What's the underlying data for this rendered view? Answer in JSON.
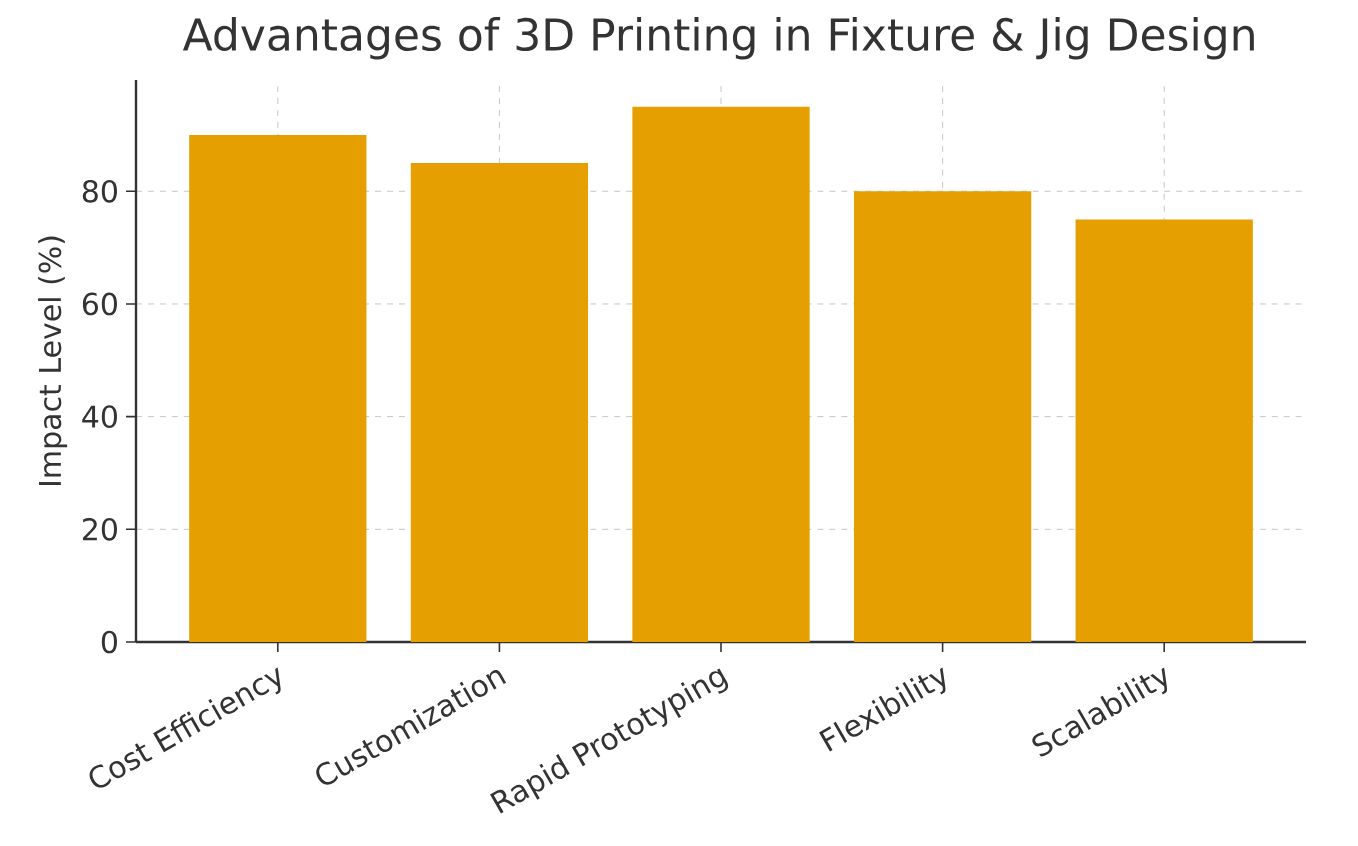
{
  "chart_data": {
    "type": "bar",
    "title": "Advantages of 3D Printing in Fixture & Jig Design",
    "ylabel": "Impact Level (%)",
    "categories": [
      "Cost Efficiency",
      "Customization",
      "Rapid Prototyping",
      "Flexibility",
      "Scalability"
    ],
    "values": [
      90,
      85,
      95,
      80,
      75
    ],
    "color": "#e69f00",
    "ylim": [
      0,
      99.75
    ],
    "yticks": [
      0,
      20,
      40,
      60,
      80
    ],
    "grid": true
  }
}
